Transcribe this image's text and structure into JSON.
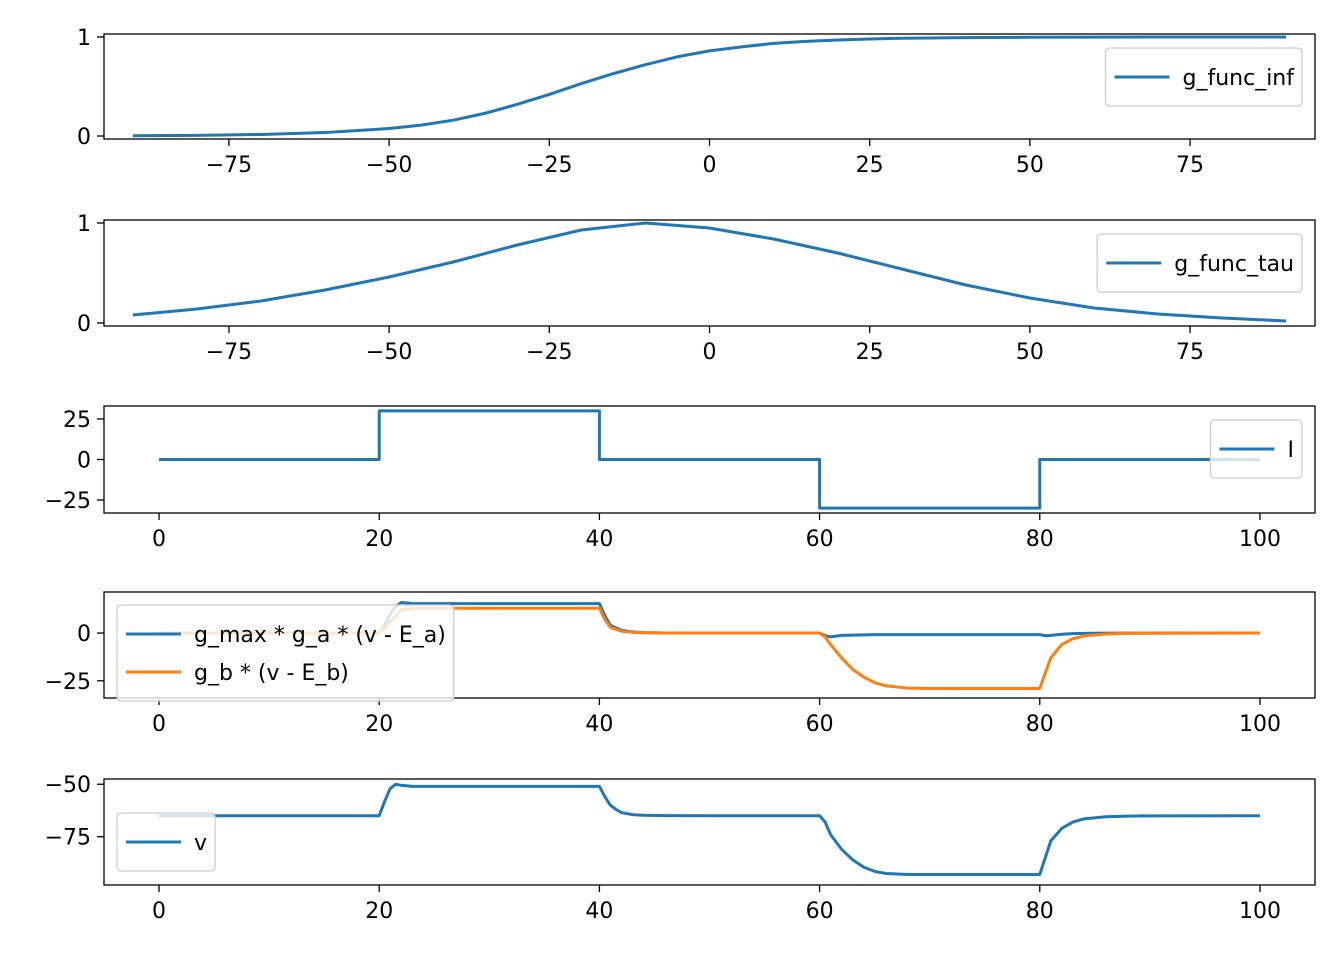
{
  "chart_data": [
    {
      "type": "line",
      "legend_position": "right",
      "xlim": [
        -94.5,
        94.5
      ],
      "ylim": [
        -0.03,
        1.03
      ],
      "xticks": [
        -75,
        -50,
        -25,
        0,
        25,
        50,
        75
      ],
      "yticks": [
        0,
        1
      ],
      "series": [
        {
          "name": "g_func_inf",
          "color": "#1f77b4",
          "x": [
            -90,
            -80,
            -70,
            -60,
            -50,
            -45,
            -40,
            -35,
            -30,
            -25,
            -20,
            -15,
            -10,
            -5,
            0,
            5,
            10,
            15,
            20,
            25,
            30,
            40,
            50,
            60,
            70,
            80,
            90
          ],
          "y": [
            0.003,
            0.007,
            0.016,
            0.035,
            0.076,
            0.11,
            0.16,
            0.23,
            0.32,
            0.42,
            0.53,
            0.63,
            0.72,
            0.8,
            0.86,
            0.9,
            0.935,
            0.955,
            0.97,
            0.98,
            0.987,
            0.994,
            0.997,
            0.999,
            1.0,
            1.0,
            1.0
          ]
        }
      ]
    },
    {
      "type": "line",
      "legend_position": "right",
      "xlim": [
        -94.5,
        94.5
      ],
      "ylim": [
        -0.03,
        1.03
      ],
      "xticks": [
        -75,
        -50,
        -25,
        0,
        25,
        50,
        75
      ],
      "yticks": [
        0,
        1
      ],
      "series": [
        {
          "name": "g_func_tau",
          "color": "#1f77b4",
          "x": [
            -90,
            -80,
            -70,
            -60,
            -50,
            -40,
            -30,
            -20,
            -10,
            0,
            10,
            20,
            30,
            40,
            50,
            60,
            70,
            80,
            90
          ],
          "y": [
            0.08,
            0.14,
            0.22,
            0.33,
            0.46,
            0.61,
            0.78,
            0.93,
            1.0,
            0.95,
            0.84,
            0.7,
            0.54,
            0.38,
            0.25,
            0.15,
            0.09,
            0.05,
            0.02
          ]
        }
      ]
    },
    {
      "type": "line",
      "legend_position": "right",
      "xlim": [
        -5,
        105
      ],
      "ylim": [
        -33,
        33
      ],
      "xticks": [
        0,
        20,
        40,
        60,
        80,
        100
      ],
      "yticks": [
        25,
        0,
        -25
      ],
      "series": [
        {
          "name": "I",
          "color": "#1f77b4",
          "x": [
            0,
            20,
            20,
            40,
            40,
            60,
            60,
            80,
            80,
            100
          ],
          "y": [
            0,
            0,
            30,
            30,
            0,
            0,
            -30,
            -30,
            0,
            0
          ]
        }
      ]
    },
    {
      "type": "line",
      "legend_position": "upper left",
      "xlim": [
        -5,
        105
      ],
      "ylim": [
        -34,
        21.5
      ],
      "xticks": [
        0,
        20,
        40,
        60,
        80,
        100
      ],
      "yticks": [
        0,
        -25
      ],
      "series": [
        {
          "name": "g_max * g_a * (v - E_a)",
          "color": "#1f77b4",
          "x": [
            0,
            20,
            20.5,
            21,
            21.5,
            22,
            23,
            25,
            40,
            40.5,
            41,
            42,
            43,
            44,
            46,
            50,
            60,
            60.5,
            61,
            62,
            65,
            80,
            80.5,
            81,
            82,
            83,
            84,
            86,
            100
          ],
          "y": [
            0,
            0,
            4,
            10,
            14,
            16,
            15.5,
            15.4,
            15.4,
            9,
            4,
            1.5,
            0.6,
            0.2,
            0.05,
            0,
            0,
            -1.3,
            -2,
            -1.2,
            -0.8,
            -0.8,
            -1.4,
            -1.2,
            -0.6,
            -0.3,
            -0.15,
            -0.05,
            0
          ]
        },
        {
          "name": "g_b * (v - E_b)",
          "color": "#ff7f0e",
          "x": [
            0,
            20,
            21,
            22,
            23,
            25,
            40,
            40.5,
            41,
            42,
            43,
            44,
            46,
            50,
            60,
            60.5,
            61,
            62,
            63,
            64,
            65,
            66,
            68,
            70,
            80,
            80.5,
            81,
            82,
            83,
            84,
            86,
            88,
            90,
            100
          ],
          "y": [
            0,
            0,
            6,
            12,
            13,
            13,
            13,
            7,
            3,
            1,
            0.4,
            0.15,
            0.05,
            0,
            0,
            -2,
            -6,
            -13,
            -19,
            -23,
            -26,
            -27.6,
            -28.8,
            -29,
            -29,
            -21,
            -13,
            -6,
            -3,
            -1.5,
            -0.5,
            -0.15,
            -0.05,
            0
          ]
        }
      ]
    },
    {
      "type": "line",
      "legend_position": "lower left",
      "xlim": [
        -5,
        105
      ],
      "ylim": [
        -98,
        -47.5
      ],
      "xticks": [
        0,
        20,
        40,
        60,
        80,
        100
      ],
      "yticks": [
        -50,
        -75
      ],
      "series": [
        {
          "name": "v",
          "color": "#1f77b4",
          "x": [
            0,
            20,
            20.5,
            21,
            21.5,
            22,
            23,
            25,
            40,
            40.5,
            41,
            41.5,
            42,
            43,
            44,
            46,
            50,
            60,
            60.5,
            61,
            62,
            63,
            64,
            65,
            66,
            68,
            70,
            80,
            80.5,
            81,
            82,
            83,
            84,
            86,
            88,
            90,
            100
          ],
          "y": [
            -65,
            -65,
            -58,
            -52,
            -50,
            -50.5,
            -51,
            -51,
            -51,
            -56,
            -60,
            -62,
            -63.5,
            -64.5,
            -64.8,
            -64.95,
            -65,
            -65,
            -68,
            -74,
            -81,
            -86,
            -89.5,
            -91.5,
            -92.5,
            -93,
            -93,
            -93,
            -85,
            -77,
            -71,
            -68,
            -66.5,
            -65.5,
            -65.2,
            -65.05,
            -65
          ]
        }
      ]
    }
  ]
}
